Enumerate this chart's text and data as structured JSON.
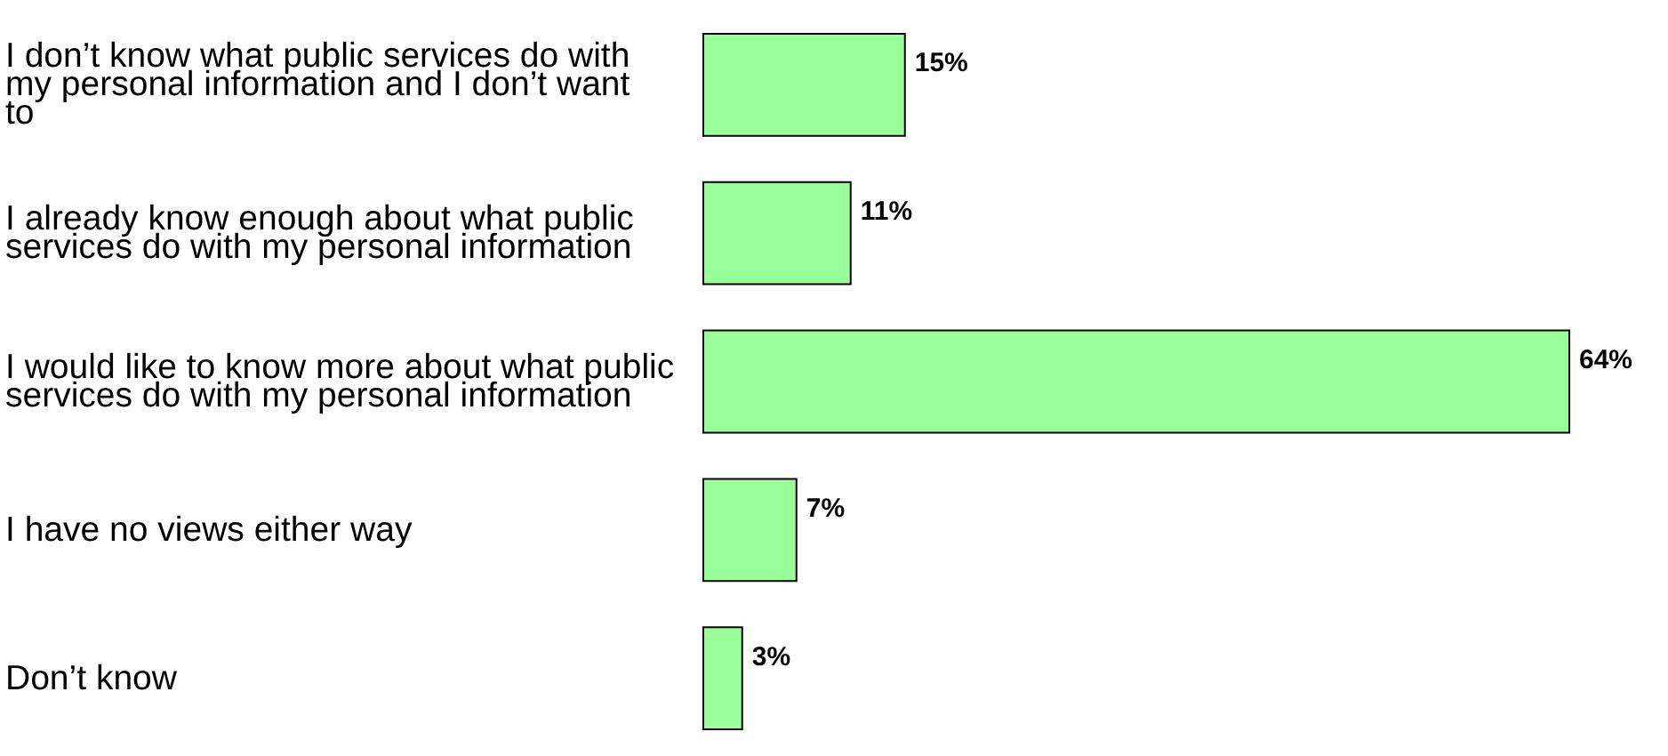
{
  "chart_data": {
    "type": "bar",
    "orientation": "horizontal",
    "categories": [
      "I don’t know what public services do with my personal information and I don’t want to",
      "I already know enough about what public services do with my personal information",
      "I would like to know more about what public services do with my personal information",
      "I have no views either way",
      "Don’t know"
    ],
    "values": [
      15,
      11,
      64,
      7,
      3
    ],
    "value_labels": [
      "15%",
      "11%",
      "64%",
      "7%",
      "3%"
    ],
    "color": "#99ff99",
    "grid": false
  }
}
